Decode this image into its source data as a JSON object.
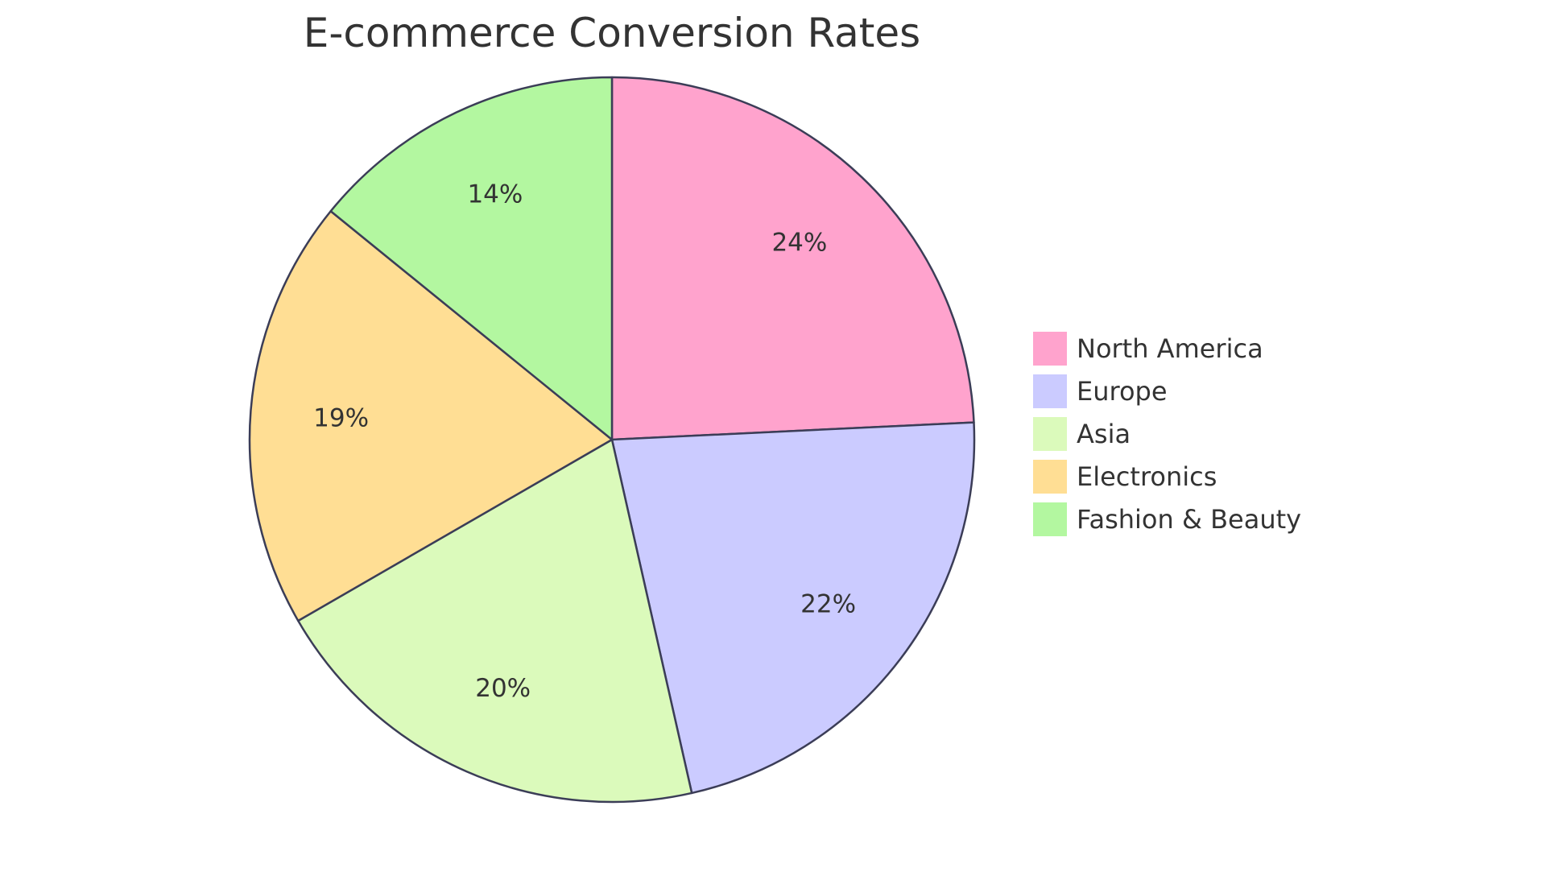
{
  "chart_data": {
    "type": "pie",
    "title": "E-commerce Conversion Rates",
    "slices": [
      {
        "label": "North America",
        "value": 24,
        "display": "24%",
        "color": "#ffa3cd"
      },
      {
        "label": "Europe",
        "value": 22,
        "display": "22%",
        "color": "#cbcbff"
      },
      {
        "label": "Asia",
        "value": 20,
        "display": "20%",
        "color": "#dbfabb"
      },
      {
        "label": "Electronics",
        "value": 19,
        "display": "19%",
        "color": "#ffde94"
      },
      {
        "label": "Fashion & Beauty",
        "value": 14,
        "display": "14%",
        "color": "#b3f7a0"
      }
    ],
    "legend_position": "right",
    "stroke_color": "#3b3d57"
  }
}
